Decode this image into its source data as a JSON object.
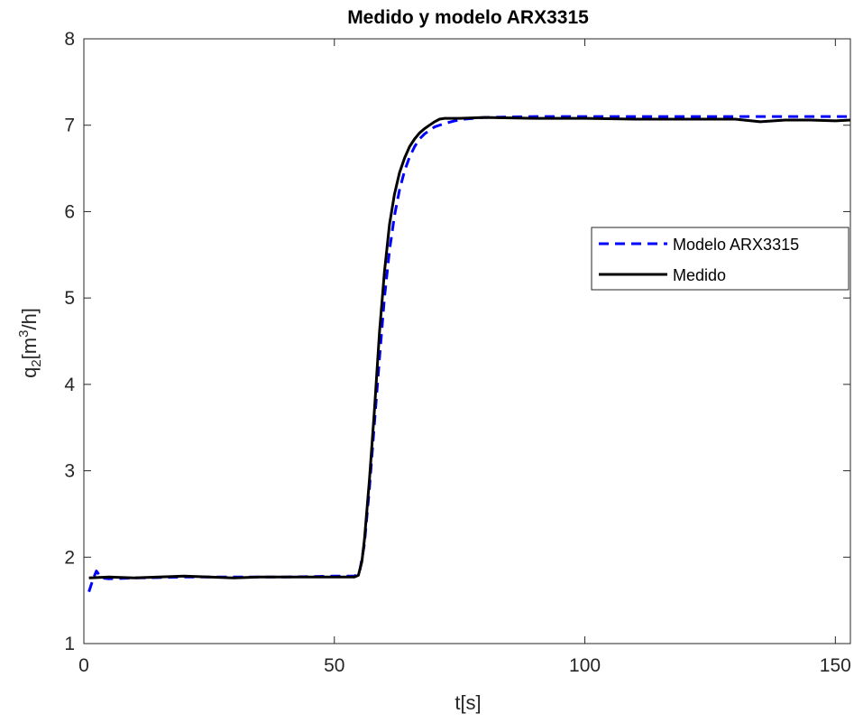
{
  "chart_data": {
    "type": "line",
    "title": "Medido y modelo ARX3315",
    "xlabel": "t[s]",
    "ylabel": "q₂[m³/h]",
    "ylabel_parts": {
      "base": "q",
      "sub": "2",
      "mid": "[m",
      "sup": "3",
      "end": "/h]"
    },
    "xlim": [
      0,
      153
    ],
    "ylim": [
      1,
      8
    ],
    "xticks": [
      0,
      50,
      100,
      150
    ],
    "yticks": [
      1,
      2,
      3,
      4,
      5,
      6,
      7,
      8
    ],
    "grid": false,
    "legend_position": "right-middle",
    "series": [
      {
        "name": "Modelo ARX3315",
        "color": "#0000ff",
        "style": "dashed",
        "x": [
          1,
          1.8,
          2.5,
          3.5,
          5,
          10,
          20,
          30,
          40,
          50,
          54,
          55,
          56,
          57,
          58,
          59,
          60,
          61,
          62,
          63,
          64,
          65,
          66,
          67,
          68,
          70,
          72,
          74,
          76,
          80,
          90,
          100,
          120,
          140,
          153
        ],
        "y": [
          1.6,
          1.74,
          1.84,
          1.76,
          1.75,
          1.76,
          1.77,
          1.77,
          1.77,
          1.78,
          1.78,
          1.82,
          2.15,
          2.8,
          3.55,
          4.3,
          5.0,
          5.55,
          5.95,
          6.25,
          6.47,
          6.63,
          6.75,
          6.84,
          6.9,
          6.98,
          7.02,
          7.05,
          7.07,
          7.09,
          7.1,
          7.1,
          7.1,
          7.1,
          7.1
        ]
      },
      {
        "name": "Medido",
        "color": "#000000",
        "style": "solid",
        "x": [
          1,
          5,
          10,
          15,
          20,
          25,
          30,
          35,
          40,
          45,
          50,
          54,
          54.8,
          55.5,
          56,
          57,
          58,
          59,
          60,
          61,
          62,
          63,
          64,
          65,
          66,
          67,
          68,
          69,
          70,
          71,
          72,
          75,
          80,
          90,
          100,
          110,
          120,
          130,
          135,
          140,
          145,
          150,
          153
        ],
        "y": [
          1.76,
          1.77,
          1.76,
          1.77,
          1.78,
          1.77,
          1.76,
          1.77,
          1.77,
          1.77,
          1.77,
          1.77,
          1.79,
          1.95,
          2.2,
          2.9,
          3.7,
          4.6,
          5.3,
          5.85,
          6.2,
          6.45,
          6.62,
          6.75,
          6.84,
          6.91,
          6.96,
          7.0,
          7.04,
          7.07,
          7.08,
          7.08,
          7.09,
          7.08,
          7.08,
          7.07,
          7.07,
          7.07,
          7.04,
          7.06,
          7.06,
          7.05,
          7.06
        ]
      }
    ]
  }
}
